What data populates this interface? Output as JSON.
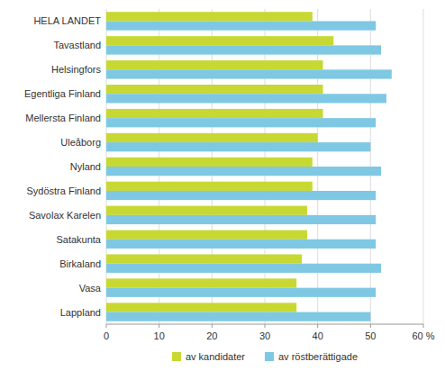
{
  "chart_data": {
    "type": "bar",
    "orientation": "horizontal",
    "categories": [
      "HELA LANDET",
      "Tavastland",
      "Helsingfors",
      "Egentliga Finland",
      "Mellersta Finland",
      "Uleåborg",
      "Nyland",
      "Sydöstra Finland",
      "Savolax Karelen",
      "Satakunta",
      "Birkaland",
      "Vasa",
      "Lappland"
    ],
    "series": [
      {
        "name": "av kandidater",
        "color": "#c8d832",
        "values": [
          39,
          43,
          41,
          41,
          41,
          40,
          39,
          39,
          38,
          38,
          37,
          36,
          36
        ]
      },
      {
        "name": "av röstberättigade",
        "color": "#7ec8e3",
        "values": [
          51,
          52,
          54,
          53,
          51,
          50,
          52,
          51,
          51,
          51,
          52,
          51,
          50
        ]
      }
    ],
    "xlim": [
      0,
      60
    ],
    "xticks": [
      0,
      10,
      20,
      30,
      40,
      50,
      {
        "value": 60,
        "label": "60 %"
      }
    ],
    "grid": true,
    "legend": "bottom"
  }
}
